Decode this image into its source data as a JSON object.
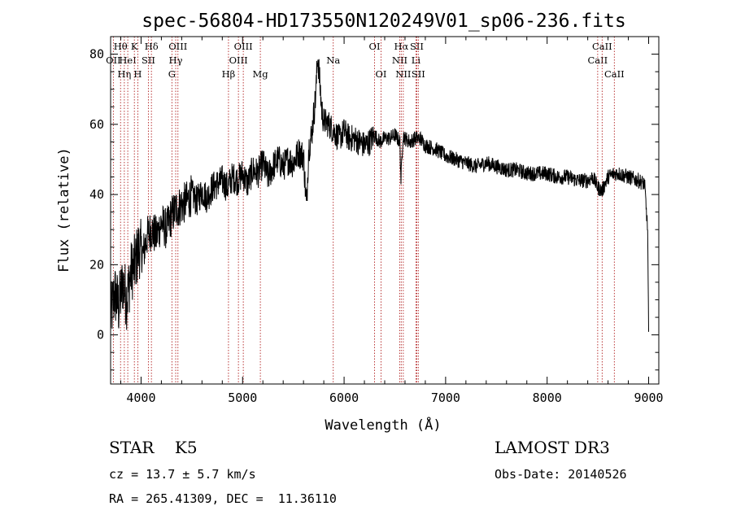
{
  "chart_data": {
    "type": "line",
    "title": "spec-56804-HD173550N120249V01_sp06-236.fits",
    "xlabel": "Wavelength (Å)",
    "ylabel": "Flux (relative)",
    "xlim": [
      3700,
      9100
    ],
    "ylim": [
      -14,
      85
    ],
    "xticks": [
      4000,
      5000,
      6000,
      7000,
      8000,
      9000
    ],
    "yticks": [
      0,
      20,
      40,
      60,
      80
    ],
    "grid": false,
    "series": [
      {
        "name": "flux",
        "x": [
          3700,
          3740,
          3780,
          3820,
          3860,
          3900,
          3940,
          3980,
          4020,
          4060,
          4100,
          4150,
          4200,
          4250,
          4300,
          4350,
          4400,
          4450,
          4500,
          4550,
          4600,
          4650,
          4700,
          4750,
          4800,
          4850,
          4900,
          4950,
          5000,
          5050,
          5100,
          5150,
          5200,
          5250,
          5300,
          5350,
          5400,
          5450,
          5500,
          5550,
          5600,
          5630,
          5650,
          5680,
          5720,
          5740,
          5760,
          5780,
          5800,
          5850,
          5900,
          5950,
          6000,
          6050,
          6100,
          6150,
          6200,
          6250,
          6300,
          6350,
          6400,
          6450,
          6500,
          6550,
          6560,
          6580,
          6600,
          6650,
          6700,
          6750,
          6800,
          6900,
          7000,
          7100,
          7200,
          7300,
          7400,
          7500,
          7600,
          7700,
          7800,
          7900,
          8000,
          8100,
          8200,
          8300,
          8400,
          8450,
          8500,
          8540,
          8600,
          8660,
          8700,
          8800,
          8900,
          8960,
          8990,
          9000
        ],
        "values": [
          5,
          12,
          8,
          15,
          10,
          18,
          20,
          25,
          23,
          28,
          30,
          28,
          32,
          30,
          34,
          36,
          37,
          38,
          40,
          38,
          41,
          39,
          42,
          43,
          44,
          42,
          45,
          44,
          46,
          43,
          47,
          46,
          49,
          45,
          48,
          50,
          48,
          50,
          49,
          52,
          51,
          36,
          53,
          57,
          68,
          80,
          72,
          64,
          61,
          60,
          58,
          56,
          58,
          56,
          56,
          55,
          54,
          55,
          57,
          55,
          56,
          56,
          57,
          55,
          44,
          57,
          56,
          55,
          56,
          56,
          54,
          53,
          51,
          50,
          49,
          48,
          49,
          48,
          47,
          47,
          46,
          46,
          46,
          45,
          45,
          44,
          44,
          45,
          42,
          41,
          45,
          46,
          46,
          45,
          44,
          43,
          30,
          0
        ]
      }
    ],
    "lines": [
      {
        "wl": 3727,
        "label": "OII",
        "row": 2
      },
      {
        "wl": 3798,
        "label": "Hθ",
        "row": 1
      },
      {
        "wl": 3835,
        "label": "Hη",
        "row": 3
      },
      {
        "wl": 3869,
        "label": "HeI",
        "row": 2
      },
      {
        "wl": 3934,
        "label": "K",
        "row": 1
      },
      {
        "wl": 3968,
        "label": "H",
        "row": 3
      },
      {
        "wl": 4072,
        "label": "SII",
        "row": 2
      },
      {
        "wl": 4102,
        "label": "Hδ",
        "row": 1
      },
      {
        "wl": 4304,
        "label": "G",
        "row": 3
      },
      {
        "wl": 4341,
        "label": "Hγ",
        "row": 2
      },
      {
        "wl": 4363,
        "label": "OIII",
        "row": 1
      },
      {
        "wl": 4861,
        "label": "Hβ",
        "row": 3
      },
      {
        "wl": 4959,
        "label": "OIII",
        "row": 2
      },
      {
        "wl": 5007,
        "label": "OIII",
        "row": 1
      },
      {
        "wl": 5175,
        "label": "Mg",
        "row": 3
      },
      {
        "wl": 5893,
        "label": "Na",
        "row": 2
      },
      {
        "wl": 6300,
        "label": "OI",
        "row": 1
      },
      {
        "wl": 6364,
        "label": "OI",
        "row": 3
      },
      {
        "wl": 6548,
        "label": "NII",
        "row": 2
      },
      {
        "wl": 6563,
        "label": "Hα",
        "row": 1
      },
      {
        "wl": 6583,
        "label": "NII",
        "row": 3
      },
      {
        "wl": 6708,
        "label": "Li",
        "row": 2
      },
      {
        "wl": 6716,
        "label": "SII",
        "row": 1
      },
      {
        "wl": 6731,
        "label": "SII",
        "row": 3
      },
      {
        "wl": 8498,
        "label": "CaII",
        "row": 2
      },
      {
        "wl": 8542,
        "label": "CaII",
        "row": 1
      },
      {
        "wl": 8662,
        "label": "CaII",
        "row": 3
      }
    ]
  },
  "info": {
    "class_text": "STAR    K5",
    "redshift_text": "cz = 13.7 ± 5.7 km/s",
    "coords_text": "RA = 265.41309, DEC =  11.36110",
    "survey_text": "LAMOST DR3",
    "obsdate_text": "Obs-Date: 20140526"
  }
}
